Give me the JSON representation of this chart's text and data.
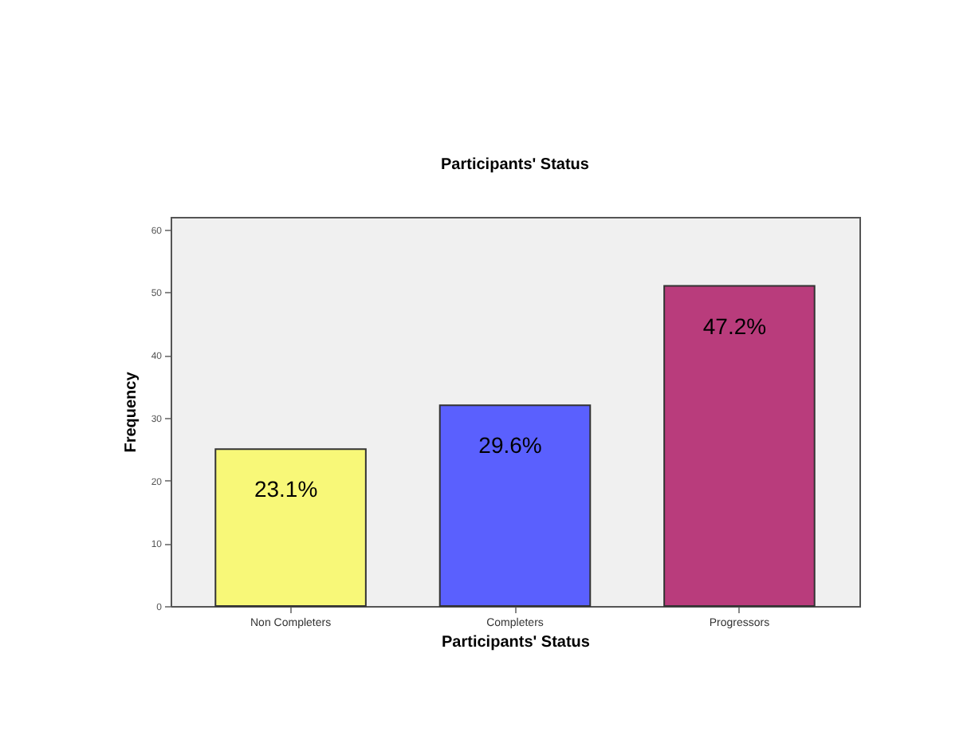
{
  "chart_data": {
    "type": "bar",
    "title": "Participants' Status",
    "xlabel": "Participants' Status",
    "ylabel": "Frequency",
    "categories": [
      "Non Completers",
      "Completers",
      "Progressors"
    ],
    "values": [
      25,
      32,
      51
    ],
    "colors": [
      "#f8f878",
      "#5a60fe",
      "#b93c7c"
    ],
    "annotations": [
      {
        "text": "23.1%",
        "x": "Non Completers",
        "y": 25
      },
      {
        "text": "29.6%",
        "x": "Completers",
        "y": 32
      },
      {
        "text": "47.2%",
        "x": "Progressors",
        "y": 51
      }
    ],
    "ylim": [
      0,
      62
    ],
    "yticks": [
      0,
      10,
      20,
      30,
      40,
      50,
      60
    ],
    "grid": false
  }
}
